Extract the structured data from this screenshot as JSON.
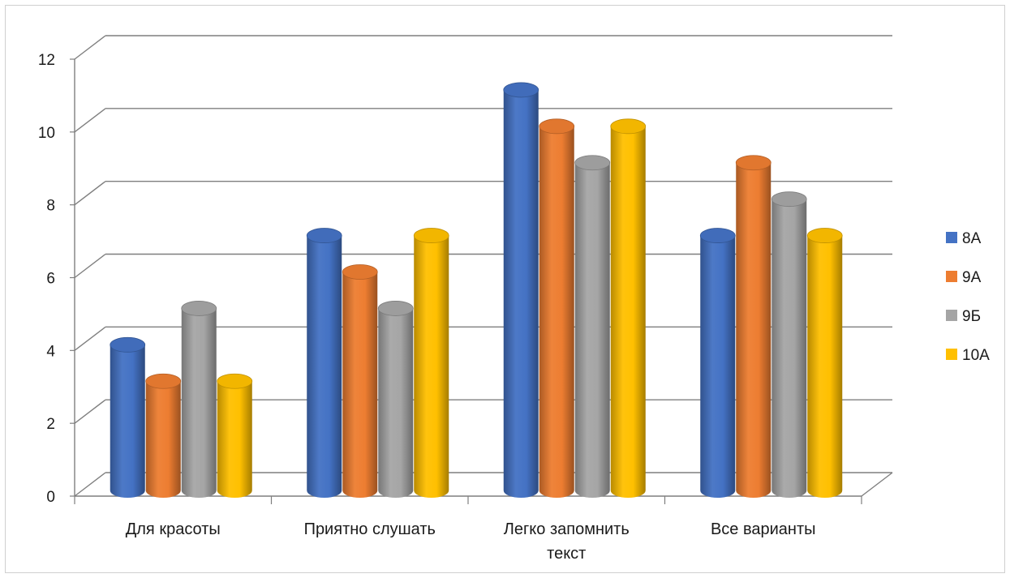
{
  "chart_data": {
    "type": "bar",
    "title": "",
    "xlabel": "",
    "ylabel": "",
    "ylim": [
      0,
      12
    ],
    "yticks": [
      "0",
      "2",
      "4",
      "6",
      "8",
      "10",
      "12"
    ],
    "categories": [
      [
        "Для красоты"
      ],
      [
        "Приятно слушать"
      ],
      [
        "Легко запомнить",
        "текст"
      ],
      [
        "Все варианты"
      ]
    ],
    "series": [
      {
        "name": "8А",
        "color": "#4472C4",
        "values": [
          4,
          7,
          11,
          7
        ]
      },
      {
        "name": "9А",
        "color": "#ED7D31",
        "values": [
          3,
          6,
          10,
          9
        ]
      },
      {
        "name": "9Б",
        "color": "#A5A5A5",
        "values": [
          5,
          5,
          9,
          8
        ]
      },
      {
        "name": "10А",
        "color": "#FFC000",
        "values": [
          3,
          7,
          10,
          7
        ]
      }
    ],
    "grid": true,
    "legend_position": "right",
    "style": "3d-cylinder"
  }
}
